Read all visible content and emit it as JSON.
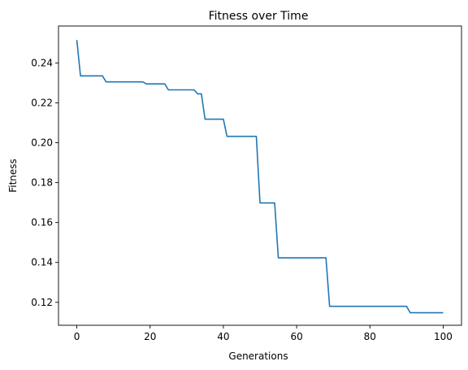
{
  "chart_data": {
    "type": "line",
    "title": "Fitness over Time",
    "xlabel": "Generations",
    "ylabel": "Fitness",
    "xlim": [
      -5,
      105
    ],
    "ylim": [
      0.1085,
      0.2585
    ],
    "x_ticks": [
      0,
      20,
      40,
      60,
      80,
      100
    ],
    "y_ticks": [
      0.12,
      0.14,
      0.16,
      0.18,
      0.2,
      0.22,
      0.24
    ],
    "x_tick_labels": [
      "0",
      "20",
      "40",
      "60",
      "80",
      "100"
    ],
    "y_tick_labels": [
      "0.12",
      "0.14",
      "0.16",
      "0.18",
      "0.20",
      "0.22",
      "0.24"
    ],
    "grid": false,
    "series": [
      {
        "color": "#1f77b4",
        "x": [
          0,
          1,
          7,
          8,
          18,
          19,
          24,
          25,
          32,
          33,
          34,
          35,
          40,
          41,
          49,
          50,
          54,
          55,
          68,
          69,
          90,
          91,
          100
        ],
        "y": [
          0.2515,
          0.2335,
          0.2335,
          0.2305,
          0.2305,
          0.2295,
          0.2295,
          0.2265,
          0.2265,
          0.2245,
          0.2245,
          0.2118,
          0.2118,
          0.2032,
          0.2032,
          0.1698,
          0.1698,
          0.1423,
          0.1423,
          0.118,
          0.118,
          0.1148,
          0.1148
        ]
      }
    ]
  }
}
